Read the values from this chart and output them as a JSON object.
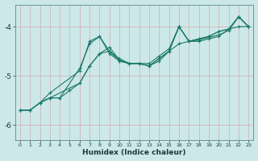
{
  "xlabel": "Humidex (Indice chaleur)",
  "ylabel": "",
  "bg_color": "#cde8e8",
  "line_color": "#1a7a6a",
  "xlim": [
    -0.5,
    23.5
  ],
  "ylim": [
    -6.3,
    -3.55
  ],
  "yticks": [
    -6,
    -5,
    -4
  ],
  "xticks": [
    0,
    1,
    2,
    3,
    4,
    5,
    6,
    7,
    8,
    9,
    10,
    11,
    12,
    13,
    14,
    15,
    16,
    17,
    18,
    19,
    20,
    21,
    22,
    23
  ],
  "series": [
    {
      "x": [
        0,
        1,
        2,
        3,
        4,
        6,
        7,
        8,
        9,
        10,
        11,
        12,
        13,
        14,
        15,
        16,
        17,
        18,
        19,
        20,
        21,
        22,
        23
      ],
      "y": [
        -5.7,
        -5.7,
        -5.55,
        -5.45,
        -5.45,
        -4.85,
        -4.35,
        -4.2,
        -4.55,
        -4.7,
        -4.75,
        -4.75,
        -4.8,
        -4.7,
        -4.5,
        -4.0,
        -4.3,
        -4.3,
        -4.25,
        -4.2,
        -4.05,
        -3.8,
        -4.0
      ]
    },
    {
      "x": [
        0,
        1,
        2,
        3,
        4,
        5,
        6,
        7,
        8,
        9,
        10,
        11,
        12,
        13,
        14,
        15,
        16,
        17,
        18,
        19,
        20,
        21,
        22,
        23
      ],
      "y": [
        -5.7,
        -5.7,
        -5.55,
        -5.45,
        -5.45,
        -5.3,
        -5.15,
        -4.8,
        -4.55,
        -4.5,
        -4.7,
        -4.75,
        -4.75,
        -4.8,
        -4.65,
        -4.5,
        -4.35,
        -4.3,
        -4.25,
        -4.2,
        -4.1,
        -4.05,
        -4.0,
        -4.0
      ]
    },
    {
      "x": [
        2,
        3,
        6,
        7,
        8,
        9,
        10,
        11,
        12,
        13,
        14,
        15,
        16,
        17,
        18,
        19,
        20,
        21,
        22,
        23
      ],
      "y": [
        -5.55,
        -5.35,
        -4.9,
        -4.3,
        -4.2,
        -4.5,
        -4.65,
        -4.75,
        -4.75,
        -4.75,
        -4.6,
        -4.45,
        -4.0,
        -4.3,
        -4.25,
        -4.2,
        -4.1,
        -4.05,
        -3.8,
        -4.0
      ]
    },
    {
      "x": [
        0,
        1,
        2,
        3,
        6,
        7,
        8,
        9,
        10,
        11,
        12,
        13,
        14,
        15,
        16,
        17,
        18,
        19,
        20,
        21,
        22,
        23
      ],
      "y": [
        -5.7,
        -5.7,
        -5.55,
        -5.45,
        -5.15,
        -4.8,
        -4.55,
        -4.42,
        -4.68,
        -4.75,
        -4.75,
        -4.8,
        -4.65,
        -4.5,
        -4.0,
        -4.3,
        -4.27,
        -4.22,
        -4.17,
        -4.08,
        -3.8,
        -4.0
      ]
    }
  ]
}
